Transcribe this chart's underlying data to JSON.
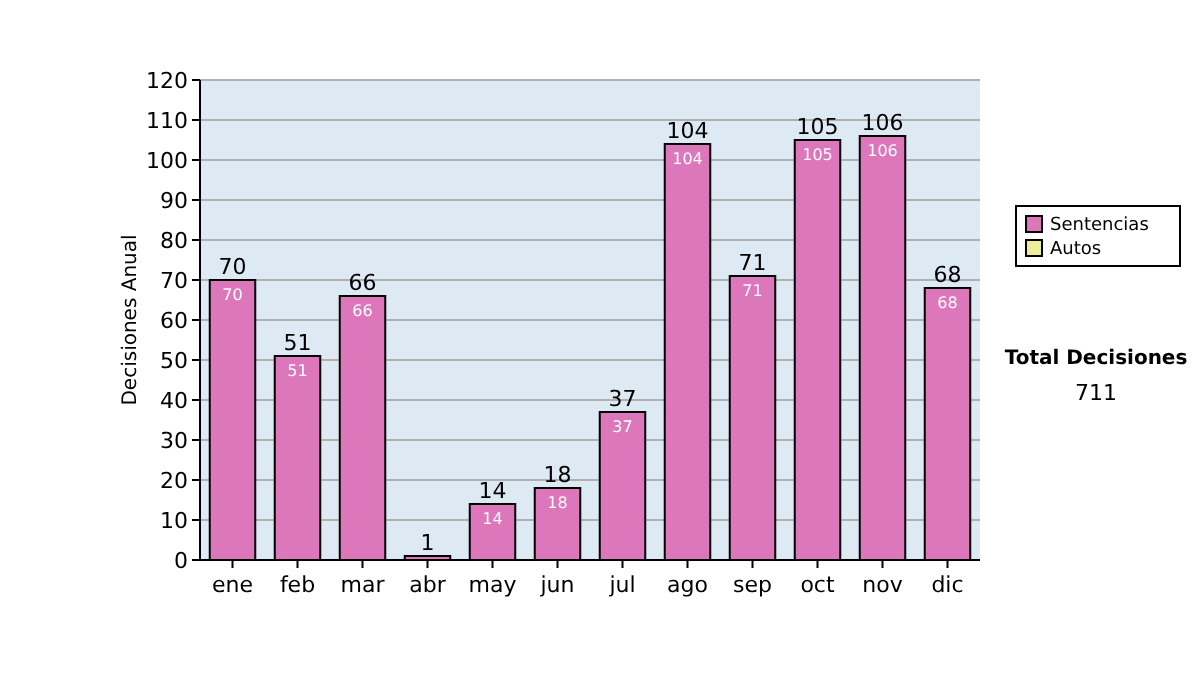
{
  "chart_data": {
    "type": "bar",
    "ylabel": "Decisiones Anual",
    "categories": [
      "ene",
      "feb",
      "mar",
      "abr",
      "may",
      "jun",
      "jul",
      "ago",
      "sep",
      "oct",
      "nov",
      "dic"
    ],
    "series": [
      {
        "name": "Sentencias",
        "color": "#dd77bb",
        "values": [
          70,
          51,
          66,
          1,
          14,
          18,
          37,
          104,
          71,
          105,
          106,
          68
        ],
        "value_labels": [
          "70",
          "51",
          "66",
          null,
          "14",
          "18",
          "37",
          "104",
          "71",
          "105",
          "106",
          "68"
        ]
      },
      {
        "name": "Autos",
        "color": "#eeee99",
        "values": [
          null,
          null,
          null,
          null,
          null,
          null,
          null,
          null,
          null,
          null,
          null,
          null
        ]
      }
    ],
    "stacked": true,
    "totals": [
      "70",
      "51",
      "66",
      "1",
      "14",
      "18",
      "37",
      "104",
      "71",
      "105",
      "106",
      "68"
    ],
    "ylim": [
      0,
      120
    ],
    "yticks": [
      0,
      10,
      20,
      30,
      40,
      50,
      60,
      70,
      80,
      90,
      100,
      110,
      120
    ],
    "grid": "y",
    "legend": "right",
    "annotations": [
      "Total Decisiones",
      "711"
    ]
  }
}
